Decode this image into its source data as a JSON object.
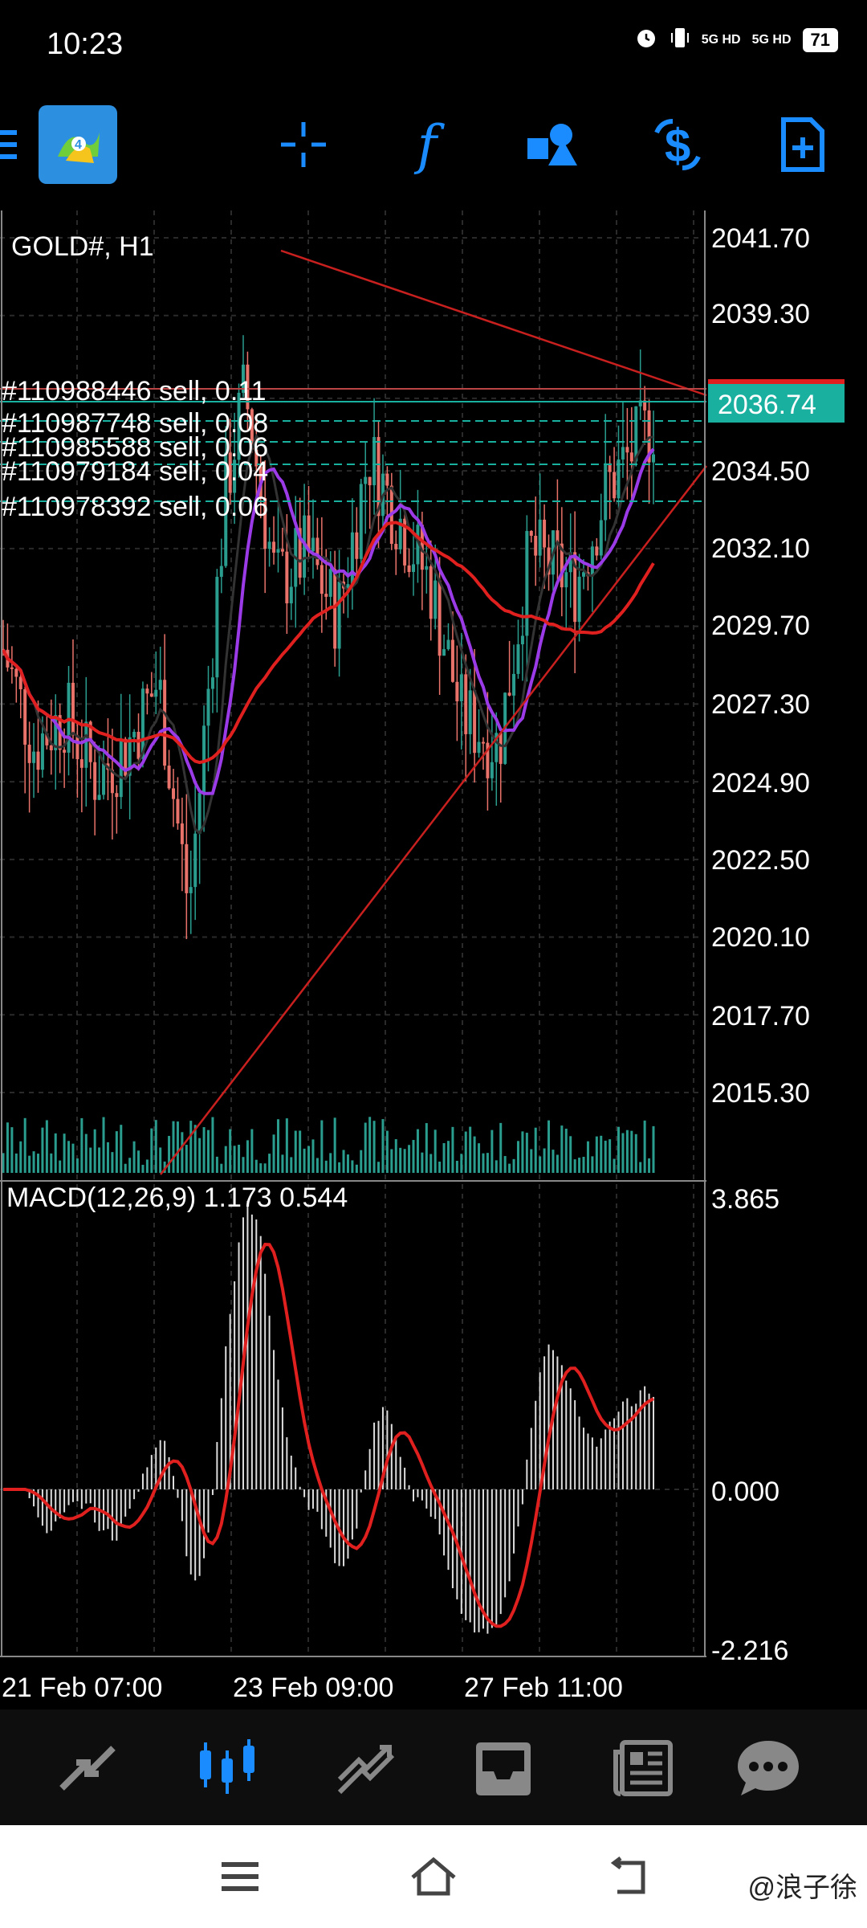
{
  "status_bar": {
    "time": "10:23",
    "network_1": "5G HD",
    "network_2": "5G HD",
    "battery": "71"
  },
  "toolbar": {
    "icons": [
      "menu-icon",
      "metatrader-logo",
      "crosshair-icon",
      "function-icon",
      "objects-icon",
      "currency-icon",
      "new-order-icon"
    ]
  },
  "chart": {
    "title": "GOLD#, H1",
    "current_price": "2036.74",
    "price_axis": [
      "2041.70",
      "2039.30",
      "2036.74",
      "2034.50",
      "2032.10",
      "2029.70",
      "2027.30",
      "2024.90",
      "2022.50",
      "2020.10",
      "2017.70",
      "2015.30"
    ],
    "orders": [
      "#110988446 sell, 0.11",
      "#110987748 sell, 0.08",
      "#110985588 sell, 0.06",
      "#110979184 sell, 0.04",
      "#110978392 sell, 0.06"
    ],
    "macd_label": "MACD(12,26,9) 1.173 0.544",
    "macd_axis": [
      "3.865",
      "0.000",
      "-2.216"
    ],
    "time_axis": [
      "21 Feb 07:00",
      "23 Feb 09:00",
      "27 Feb 11:00"
    ]
  },
  "colors": {
    "accent": "#1a8cff",
    "price_tag": "#1ab0a0",
    "bull": "#2a9d8f",
    "bear": "#e9736a",
    "ma_red": "#e0201e",
    "ma_purple": "#9b3be8",
    "trendline": "#c8201e"
  },
  "bottom_nav": {
    "items": [
      "quotes-icon",
      "chart-icon",
      "trade-icon",
      "history-icon",
      "news-icon",
      "messages-icon"
    ]
  },
  "system_nav": {
    "items": [
      "menu-icon",
      "home-icon",
      "back-icon"
    ]
  },
  "watermark": "@浪子徐"
}
